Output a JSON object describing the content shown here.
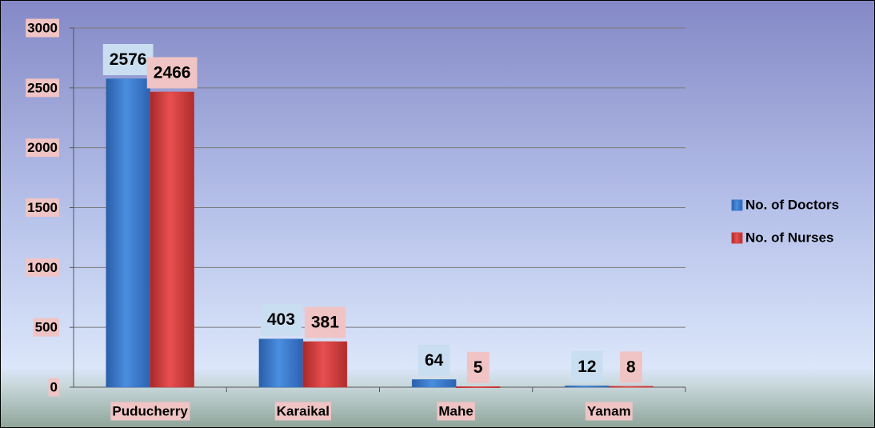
{
  "chart_data": {
    "type": "bar",
    "categories": [
      "Puducherry",
      "Karaikal",
      "Mahe",
      "Yanam"
    ],
    "series": [
      {
        "name": "No. of Doctors",
        "color": "#3a78c8",
        "values": [
          2576,
          403,
          64,
          12
        ]
      },
      {
        "name": "No. of Nurses",
        "color": "#d43c3c",
        "values": [
          2466,
          381,
          5,
          8
        ]
      }
    ],
    "ylim": [
      0,
      3000
    ],
    "yticks": [
      0,
      500,
      1000,
      1500,
      2000,
      2500,
      3000
    ],
    "grid": true,
    "legend": "right"
  }
}
